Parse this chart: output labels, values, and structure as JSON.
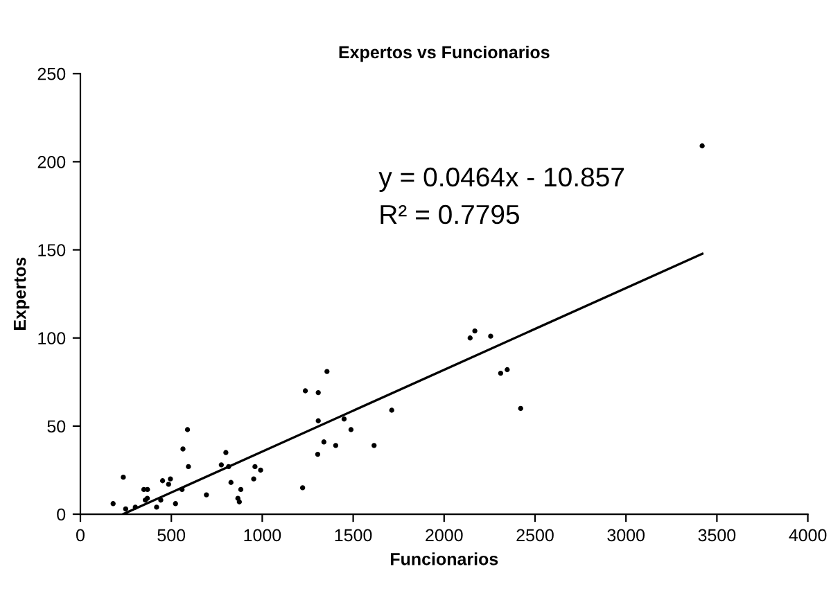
{
  "chart_data": {
    "type": "scatter",
    "title": "Expertos vs Funcionarios",
    "xlabel": "Funcionarios",
    "ylabel": "Expertos",
    "xlim": [
      0,
      4000
    ],
    "xticks": [
      0,
      500,
      1000,
      1500,
      2000,
      2500,
      3000,
      3500,
      4000
    ],
    "ylim": [
      0,
      250
    ],
    "yticks": [
      0,
      50,
      100,
      150,
      200,
      250
    ],
    "grid": false,
    "legend": false,
    "annotations": [
      "y = 0.0464x - 10.857",
      "R² = 0.7795"
    ],
    "series": [
      {
        "color": "#000000",
        "marker": "circle",
        "x": [
          180,
          236,
          249,
          302,
          349,
          369,
          368,
          357,
          419,
          442,
          452,
          485,
          495,
          523,
          559,
          564,
          589,
          594,
          693,
          775,
          800,
          815,
          828,
          866,
          874,
          882,
          953,
          960,
          991,
          1222,
          1237,
          1305,
          1308,
          1308,
          1339,
          1356,
          1404,
          1450,
          1488,
          1615,
          1712,
          2143,
          2169,
          2256,
          2311,
          2347,
          2421,
          3419
        ],
        "values": [
          6,
          21,
          3,
          4,
          14,
          14,
          9,
          8,
          4,
          8,
          19,
          17,
          20,
          6,
          14,
          37,
          48,
          27,
          11,
          28,
          35,
          27,
          18,
          9,
          7,
          14,
          20,
          27,
          25,
          15,
          70,
          34,
          69,
          53,
          41,
          81,
          39,
          54,
          48,
          39,
          59,
          100,
          104,
          101,
          80,
          82,
          60,
          209
        ]
      },
      {
        "type": "line",
        "color": "#000000",
        "marker": "none",
        "line_style": "solid",
        "x": [
          234,
          3420
        ],
        "values": [
          0,
          147.8
        ]
      }
    ]
  }
}
